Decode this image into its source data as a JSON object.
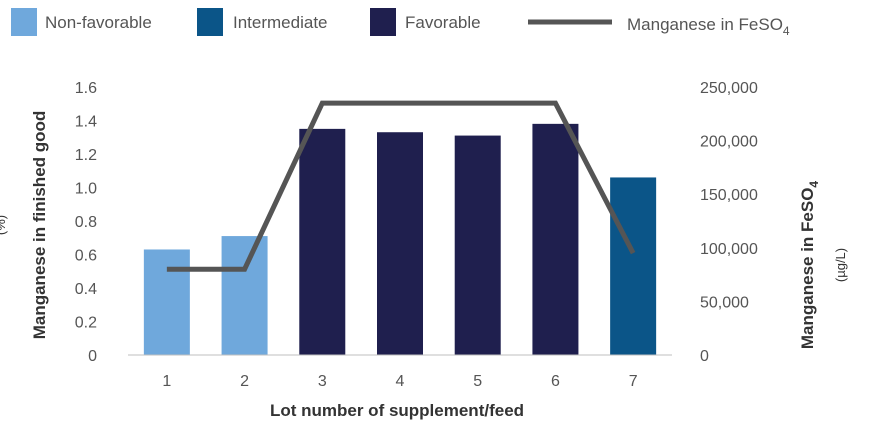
{
  "chart_data": {
    "type": "bar",
    "categories": [
      "1",
      "2",
      "3",
      "4",
      "5",
      "6",
      "7"
    ],
    "legend": {
      "position": "top",
      "items": [
        {
          "name": "Non-favorable",
          "color": "#6fa8dc"
        },
        {
          "name": "Intermediate",
          "color": "#0b5588"
        },
        {
          "name": "Favorable",
          "color": "#1f1f4e"
        },
        {
          "name": "Manganese in FeSO",
          "subscript": "4",
          "color": "#555555",
          "marker": "line"
        }
      ]
    },
    "bars": {
      "name": "Manganese in finished good",
      "axis": "left",
      "values": [
        0.63,
        0.71,
        1.35,
        1.33,
        1.31,
        1.38,
        1.06
      ],
      "classes": [
        "Non-favorable",
        "Non-favorable",
        "Favorable",
        "Favorable",
        "Favorable",
        "Favorable",
        "Intermediate"
      ]
    },
    "line": {
      "name": "Manganese in FeSO4",
      "axis": "right",
      "values": [
        80000,
        80000,
        235000,
        235000,
        235000,
        235000,
        95000
      ]
    },
    "y_left": {
      "label": "Manganese in finished good",
      "unit": "(%)",
      "ylim": [
        0,
        1.6
      ],
      "ticks": [
        "0",
        "0.2",
        "0.4",
        "0.6",
        "0.8",
        "1.0",
        "1.2",
        "1.4",
        "1.6"
      ]
    },
    "y_right": {
      "label": "Manganese in FeSO",
      "label_subscript": "4",
      "unit": "(µg/L)",
      "ylim": [
        0,
        250000
      ],
      "ticks": [
        "0",
        "50,000",
        "100,000",
        "150,000",
        "200,000",
        "250,000"
      ]
    },
    "xlabel": "Lot number of supplement/feed",
    "grid": false
  }
}
